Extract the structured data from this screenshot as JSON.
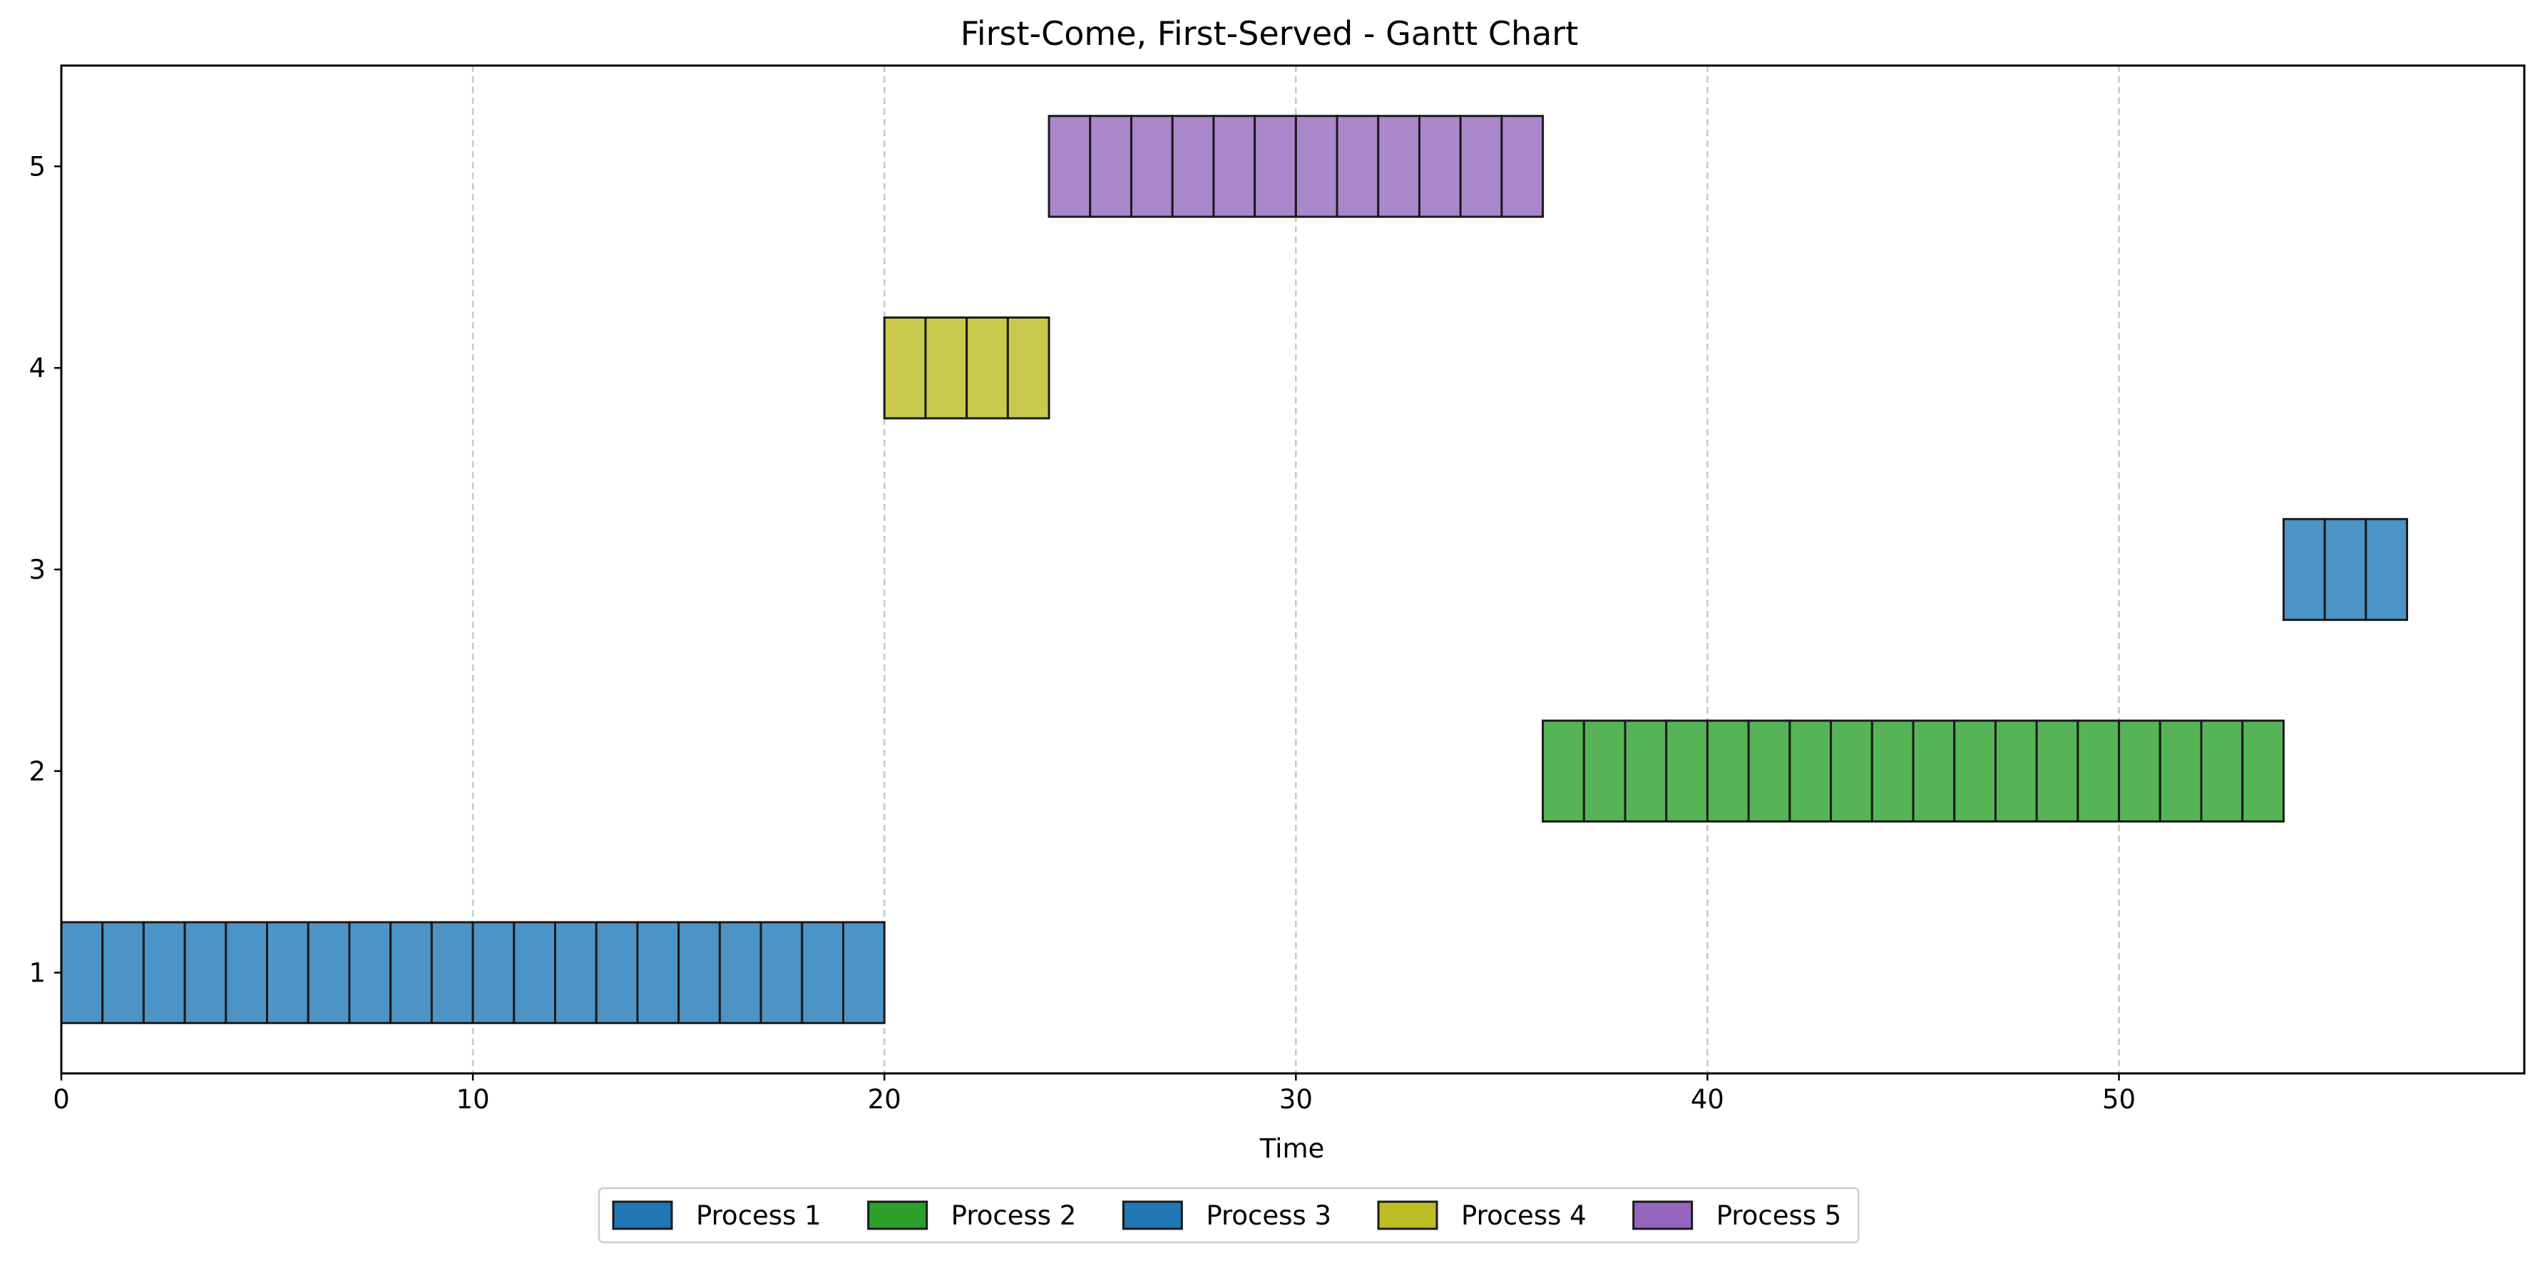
{
  "chart_data": {
    "type": "gantt",
    "title": "First-Come, First-Served - Gantt Chart",
    "xlabel": "Time",
    "ylabel": "",
    "xlim": [
      0,
      59.85
    ],
    "ylim": [
      0.5,
      5.5
    ],
    "x_ticks": [
      0,
      10,
      20,
      30,
      40,
      50
    ],
    "y_ticks": [
      1,
      2,
      3,
      4,
      5
    ],
    "grid": {
      "x": true,
      "y": false,
      "style": "dashed"
    },
    "legend_position": "bottom-center",
    "series": [
      {
        "name": "Process 1",
        "row": 1,
        "start": 0,
        "end": 20,
        "bar_color": "#4C94C6",
        "legend_color": "#1F77B4"
      },
      {
        "name": "Process 2",
        "row": 2,
        "start": 36,
        "end": 54,
        "bar_color": "#56B456",
        "legend_color": "#2CA02C"
      },
      {
        "name": "Process 3",
        "row": 3,
        "start": 54,
        "end": 57,
        "bar_color": "#4C94C6",
        "legend_color": "#1F77B4"
      },
      {
        "name": "Process 4",
        "row": 4,
        "start": 20,
        "end": 24,
        "bar_color": "#C9C94D",
        "legend_color": "#BCBD22"
      },
      {
        "name": "Process 5",
        "row": 5,
        "start": 24,
        "end": 36,
        "bar_color": "#AA87CB",
        "legend_color": "#9467BD"
      }
    ]
  }
}
